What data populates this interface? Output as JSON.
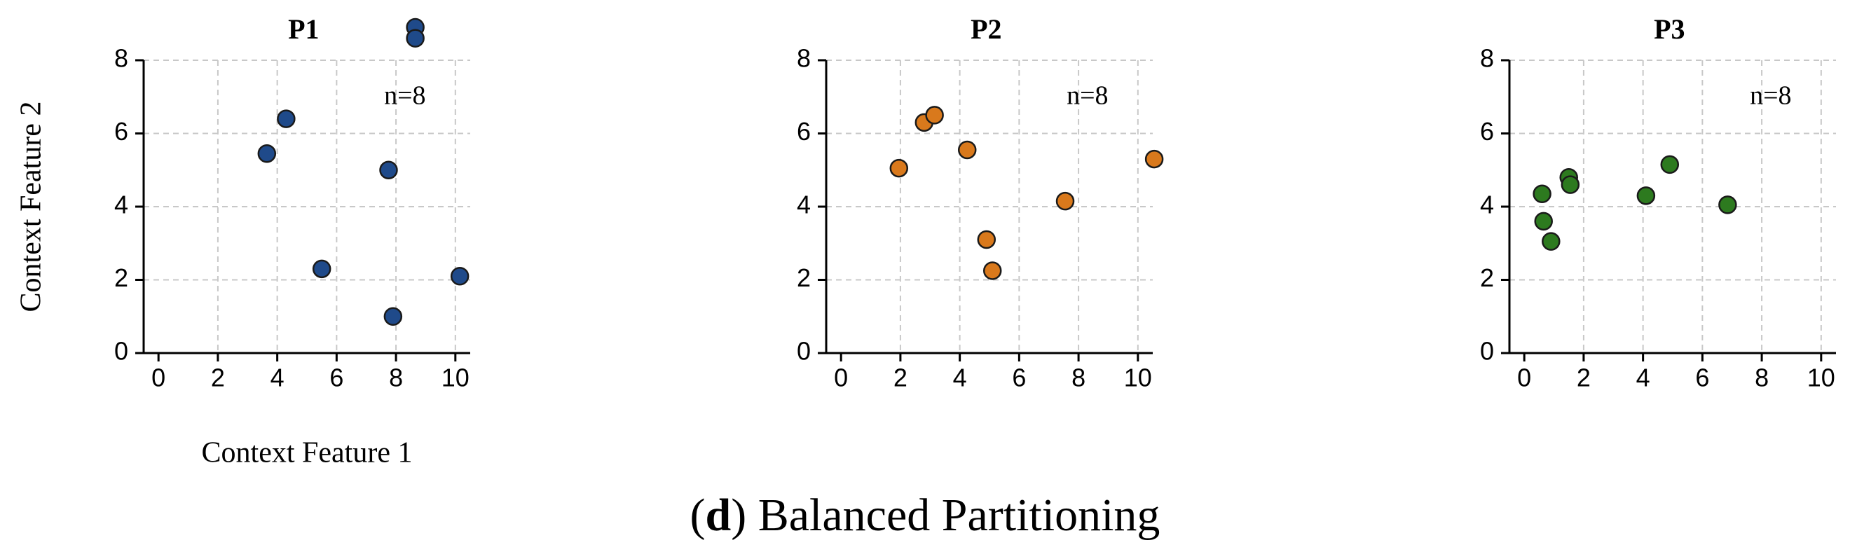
{
  "chart_data": [
    {
      "type": "scatter",
      "title": "P1",
      "annotation": "n=8",
      "xlabel": "Context Feature 1",
      "ylabel": "Context Feature 2",
      "x": [
        8.65,
        8.65,
        4.3,
        3.65,
        7.75,
        5.5,
        10.15,
        7.9
      ],
      "y": [
        8.9,
        8.6,
        6.4,
        5.45,
        5.0,
        2.3,
        2.1,
        1.0
      ],
      "color": "#1f4a8a",
      "xlim": [
        -0.5,
        10.5
      ],
      "ylim": [
        0,
        8
      ],
      "xticks": [
        0,
        2,
        4,
        6,
        8,
        10
      ],
      "yticks": [
        0,
        2,
        4,
        6,
        8
      ],
      "grid": true
    },
    {
      "type": "scatter",
      "title": "P2",
      "annotation": "n=8",
      "x": [
        1.95,
        2.8,
        3.15,
        4.25,
        10.55,
        7.55,
        4.9,
        5.1
      ],
      "y": [
        5.05,
        6.3,
        6.5,
        5.55,
        5.3,
        4.15,
        3.1,
        2.25
      ],
      "color": "#d9791c",
      "xlim": [
        -0.5,
        10.5
      ],
      "ylim": [
        0,
        8
      ],
      "xticks": [
        0,
        2,
        4,
        6,
        8,
        10
      ],
      "yticks": [
        0,
        2,
        4,
        6,
        8
      ],
      "grid": true
    },
    {
      "type": "scatter",
      "title": "P3",
      "annotation": "n=8",
      "x": [
        0.6,
        0.65,
        0.9,
        1.5,
        1.55,
        4.1,
        4.9,
        6.85
      ],
      "y": [
        4.35,
        3.6,
        3.05,
        4.8,
        4.6,
        4.3,
        5.15,
        4.05
      ],
      "color": "#2d7a1f",
      "xlim": [
        -0.5,
        10.5
      ],
      "ylim": [
        0,
        8
      ],
      "xticks": [
        0,
        2,
        4,
        6,
        8,
        10
      ],
      "yticks": [
        0,
        2,
        4,
        6,
        8
      ],
      "grid": true
    }
  ],
  "caption": {
    "open": "(",
    "label": "d",
    "rest": ") Balanced Partitioning"
  }
}
